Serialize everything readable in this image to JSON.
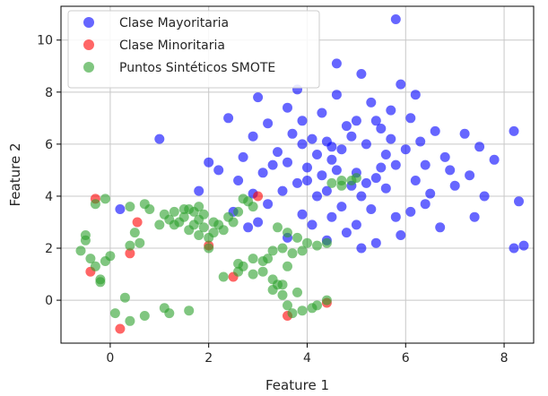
{
  "chart_data": {
    "type": "scatter",
    "title": "",
    "xlabel": "Feature 1",
    "ylabel": "Feature 2",
    "xlim": [
      -1.0,
      8.6
    ],
    "ylim": [
      -1.65,
      11.3
    ],
    "xticks": [
      0,
      2,
      4,
      6,
      8
    ],
    "yticks": [
      0,
      2,
      4,
      6,
      8,
      10
    ],
    "grid": true,
    "legend_position": "top-left",
    "series": [
      {
        "name": "Clase Mayoritaria",
        "color": "#0000ff",
        "points": [
          [
            5.8,
            10.8
          ],
          [
            4.6,
            9.1
          ],
          [
            5.1,
            8.7
          ],
          [
            5.9,
            8.3
          ],
          [
            3.8,
            8.1
          ],
          [
            6.2,
            7.9
          ],
          [
            3.0,
            7.8
          ],
          [
            5.3,
            7.6
          ],
          [
            3.6,
            7.4
          ],
          [
            5.7,
            7.3
          ],
          [
            4.3,
            7.2
          ],
          [
            6.1,
            7.0
          ],
          [
            2.4,
            7.0
          ],
          [
            5.0,
            6.9
          ],
          [
            3.2,
            6.8
          ],
          [
            4.8,
            6.7
          ],
          [
            5.5,
            6.6
          ],
          [
            6.6,
            6.5
          ],
          [
            7.2,
            6.4
          ],
          [
            8.2,
            6.5
          ],
          [
            2.9,
            6.3
          ],
          [
            4.1,
            6.2
          ],
          [
            1.0,
            6.2
          ],
          [
            4.4,
            6.1
          ],
          [
            5.2,
            6.0
          ],
          [
            3.9,
            6.0
          ],
          [
            7.5,
            5.9
          ],
          [
            4.7,
            5.8
          ],
          [
            6.0,
            5.8
          ],
          [
            3.4,
            5.7
          ],
          [
            5.6,
            5.6
          ],
          [
            6.8,
            5.5
          ],
          [
            2.7,
            5.5
          ],
          [
            4.5,
            5.4
          ],
          [
            7.8,
            5.4
          ],
          [
            3.6,
            5.3
          ],
          [
            2.0,
            5.3
          ],
          [
            5.8,
            5.2
          ],
          [
            6.4,
            5.2
          ],
          [
            4.0,
            5.1
          ],
          [
            2.2,
            5.0
          ],
          [
            5.0,
            4.9
          ],
          [
            6.9,
            5.0
          ],
          [
            3.1,
            4.9
          ],
          [
            4.3,
            4.8
          ],
          [
            7.3,
            4.8
          ],
          [
            5.4,
            4.7
          ],
          [
            2.6,
            4.6
          ],
          [
            6.2,
            4.6
          ],
          [
            3.8,
            4.5
          ],
          [
            4.9,
            4.4
          ],
          [
            7.0,
            4.4
          ],
          [
            5.6,
            4.3
          ],
          [
            3.5,
            4.2
          ],
          [
            1.8,
            4.2
          ],
          [
            6.5,
            4.1
          ],
          [
            4.2,
            4.0
          ],
          [
            5.1,
            4.0
          ],
          [
            2.9,
            4.1
          ],
          [
            7.6,
            4.0
          ],
          [
            8.3,
            3.8
          ],
          [
            3.2,
            3.7
          ],
          [
            4.7,
            3.6
          ],
          [
            5.3,
            3.5
          ],
          [
            6.1,
            3.4
          ],
          [
            0.2,
            3.5
          ],
          [
            2.5,
            3.4
          ],
          [
            3.9,
            3.3
          ],
          [
            4.5,
            3.2
          ],
          [
            5.8,
            3.2
          ],
          [
            7.4,
            3.2
          ],
          [
            3.0,
            3.0
          ],
          [
            4.1,
            2.9
          ],
          [
            5.0,
            2.9
          ],
          [
            6.7,
            2.8
          ],
          [
            2.8,
            2.8
          ],
          [
            4.8,
            2.6
          ],
          [
            5.9,
            2.5
          ],
          [
            3.6,
            2.4
          ],
          [
            4.4,
            2.3
          ],
          [
            5.4,
            2.2
          ],
          [
            8.4,
            2.1
          ],
          [
            5.1,
            2.0
          ],
          [
            8.2,
            2.0
          ],
          [
            4.6,
            5.0
          ],
          [
            4.2,
            5.6
          ],
          [
            5.7,
            6.2
          ],
          [
            3.7,
            6.4
          ],
          [
            4.9,
            6.3
          ],
          [
            5.5,
            5.1
          ],
          [
            4.4,
            4.2
          ],
          [
            3.3,
            5.2
          ],
          [
            6.3,
            6.1
          ],
          [
            5.2,
            4.5
          ],
          [
            4.0,
            4.6
          ],
          [
            3.9,
            6.9
          ],
          [
            4.6,
            7.9
          ],
          [
            6.4,
            3.7
          ],
          [
            4.5,
            5.9
          ],
          [
            5.4,
            6.9
          ]
        ]
      },
      {
        "name": "Clase Minoritaria",
        "color": "#ff0000",
        "points": [
          [
            -0.3,
            3.9
          ],
          [
            3.0,
            4.0
          ],
          [
            0.55,
            3.0
          ],
          [
            2.0,
            2.1
          ],
          [
            0.4,
            1.8
          ],
          [
            -0.4,
            1.1
          ],
          [
            2.5,
            0.9
          ],
          [
            4.4,
            -0.1
          ],
          [
            3.6,
            -0.6
          ],
          [
            0.2,
            -1.1
          ]
        ]
      },
      {
        "name": "Puntos Sintéticos SMOTE",
        "color": "#2ca02c",
        "points": [
          [
            -0.6,
            1.9
          ],
          [
            -0.5,
            2.3
          ],
          [
            -0.5,
            2.5
          ],
          [
            -0.4,
            1.6
          ],
          [
            -0.3,
            1.3
          ],
          [
            -0.2,
            0.8
          ],
          [
            -0.2,
            0.7
          ],
          [
            -0.1,
            1.5
          ],
          [
            0.0,
            1.7
          ],
          [
            0.4,
            2.1
          ],
          [
            0.5,
            2.6
          ],
          [
            0.6,
            2.2
          ],
          [
            0.8,
            3.5
          ],
          [
            0.7,
            3.7
          ],
          [
            0.4,
            3.6
          ],
          [
            -0.3,
            3.7
          ],
          [
            -0.1,
            3.9
          ],
          [
            0.1,
            -0.5
          ],
          [
            0.3,
            0.1
          ],
          [
            0.4,
            -0.8
          ],
          [
            0.7,
            -0.6
          ],
          [
            1.1,
            -0.3
          ],
          [
            1.2,
            -0.5
          ],
          [
            1.6,
            -0.4
          ],
          [
            2.6,
            1.4
          ],
          [
            2.7,
            1.3
          ],
          [
            2.9,
            1.0
          ],
          [
            3.1,
            1.1
          ],
          [
            3.3,
            0.8
          ],
          [
            3.4,
            0.6
          ],
          [
            3.5,
            0.2
          ],
          [
            3.6,
            -0.2
          ],
          [
            3.7,
            -0.5
          ],
          [
            3.9,
            -0.4
          ],
          [
            4.1,
            -0.3
          ],
          [
            4.2,
            -0.2
          ],
          [
            4.4,
            0.0
          ],
          [
            2.9,
            3.6
          ],
          [
            2.8,
            3.8
          ],
          [
            2.6,
            3.4
          ],
          [
            2.5,
            3.0
          ],
          [
            2.3,
            2.7
          ],
          [
            2.1,
            2.6
          ],
          [
            1.9,
            2.8
          ],
          [
            1.8,
            3.1
          ],
          [
            1.7,
            3.4
          ],
          [
            1.6,
            3.5
          ],
          [
            1.5,
            3.2
          ],
          [
            1.4,
            3.0
          ],
          [
            1.3,
            2.9
          ],
          [
            1.2,
            3.1
          ],
          [
            1.1,
            3.3
          ],
          [
            1.0,
            2.9
          ],
          [
            1.6,
            2.7
          ],
          [
            1.8,
            2.5
          ],
          [
            2.0,
            2.4
          ],
          [
            2.2,
            2.9
          ],
          [
            2.4,
            3.2
          ],
          [
            2.7,
            3.9
          ],
          [
            1.5,
            3.5
          ],
          [
            1.7,
            2.9
          ],
          [
            1.9,
            3.3
          ],
          [
            3.4,
            2.8
          ],
          [
            3.6,
            2.6
          ],
          [
            3.8,
            2.4
          ],
          [
            4.0,
            2.2
          ],
          [
            4.2,
            2.1
          ],
          [
            4.4,
            2.2
          ],
          [
            3.5,
            2.0
          ],
          [
            3.7,
            1.8
          ],
          [
            3.9,
            1.9
          ],
          [
            3.2,
            1.6
          ],
          [
            3.3,
            1.9
          ],
          [
            3.6,
            1.3
          ],
          [
            3.1,
            1.5
          ],
          [
            2.9,
            1.6
          ],
          [
            4.5,
            4.5
          ],
          [
            4.7,
            4.4
          ],
          [
            4.9,
            4.6
          ],
          [
            5.0,
            4.7
          ],
          [
            4.7,
            4.6
          ],
          [
            3.8,
            0.3
          ],
          [
            3.5,
            0.6
          ],
          [
            3.3,
            0.4
          ],
          [
            2.6,
            1.1
          ],
          [
            2.3,
            0.9
          ],
          [
            2.0,
            2.0
          ],
          [
            1.3,
            3.4
          ],
          [
            1.8,
            3.6
          ],
          [
            2.1,
            3.0
          ]
        ]
      }
    ]
  }
}
